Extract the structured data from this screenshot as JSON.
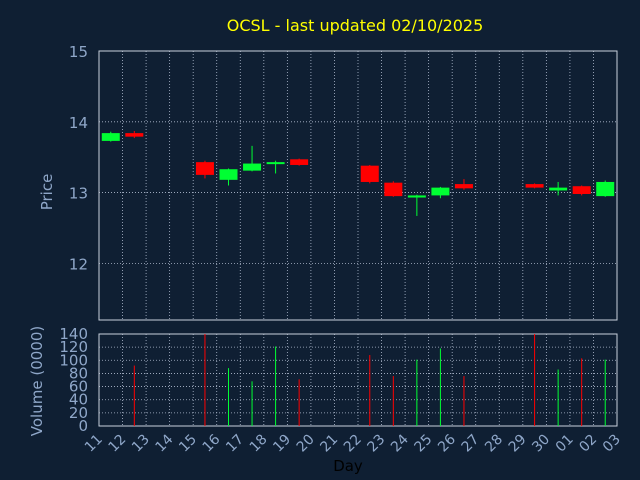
{
  "chart_data": {
    "type": "candlestick",
    "title": "OCSL - last updated 02/10/2025",
    "xlabel": "Day",
    "ylabel": "Price",
    "volume_label": "Volume (0000)",
    "x_ticks": [
      "11",
      "12",
      "13",
      "14",
      "15",
      "16",
      "17",
      "18",
      "19",
      "20",
      "21",
      "22",
      "23",
      "24",
      "25",
      "26",
      "27",
      "28",
      "29",
      "30",
      "01",
      "02",
      "03"
    ],
    "price_ylim": [
      11.2,
      15
    ],
    "price_ticks": [
      "12",
      "13",
      "14",
      "15"
    ],
    "volume_ylim": [
      0,
      140
    ],
    "volume_ticks": [
      "0",
      "20",
      "40",
      "60",
      "80",
      "100",
      "120",
      "140"
    ],
    "grid": true,
    "colors": {
      "up": "#00ff33",
      "down": "#ff0000",
      "background": "#0f1f33",
      "title": "#ffff00",
      "axis_text": "#8fa7c9",
      "grid": "#b0bcd0"
    },
    "candles": [
      {
        "day": "11",
        "open": 13.73,
        "close": 13.84,
        "high": 13.86,
        "low": 13.72,
        "volume": 0
      },
      {
        "day": "12",
        "open": 13.84,
        "close": 13.79,
        "high": 13.87,
        "low": 13.77,
        "volume": 92
      },
      {
        "day": "15",
        "open": 13.43,
        "close": 13.25,
        "high": 13.45,
        "low": 13.2,
        "volume": 140
      },
      {
        "day": "16",
        "open": 13.18,
        "close": 13.33,
        "high": 13.34,
        "low": 13.1,
        "volume": 88
      },
      {
        "day": "17",
        "open": 13.31,
        "close": 13.41,
        "high": 13.66,
        "low": 13.3,
        "volume": 68
      },
      {
        "day": "18",
        "open": 13.41,
        "close": 13.43,
        "high": 13.45,
        "low": 13.27,
        "volume": 121
      },
      {
        "day": "19",
        "open": 13.47,
        "close": 13.39,
        "high": 13.48,
        "low": 13.38,
        "volume": 71
      },
      {
        "day": "22",
        "open": 13.38,
        "close": 13.15,
        "high": 13.39,
        "low": 13.13,
        "volume": 108
      },
      {
        "day": "23",
        "open": 13.14,
        "close": 12.95,
        "high": 13.16,
        "low": 12.94,
        "volume": 76
      },
      {
        "day": "24",
        "open": 12.93,
        "close": 12.96,
        "high": 12.97,
        "low": 12.67,
        "volume": 101
      },
      {
        "day": "25",
        "open": 12.96,
        "close": 13.07,
        "high": 13.08,
        "low": 12.92,
        "volume": 118
      },
      {
        "day": "26",
        "open": 13.12,
        "close": 13.06,
        "high": 13.19,
        "low": 13.04,
        "volume": 76
      },
      {
        "day": "29",
        "open": 13.12,
        "close": 13.07,
        "high": 13.13,
        "low": 13.06,
        "volume": 140
      },
      {
        "day": "30",
        "open": 13.03,
        "close": 13.07,
        "high": 13.15,
        "low": 12.96,
        "volume": 86
      },
      {
        "day": "01",
        "open": 13.09,
        "close": 12.98,
        "high": 13.1,
        "low": 12.96,
        "volume": 103
      },
      {
        "day": "02",
        "open": 12.95,
        "close": 13.15,
        "high": 13.17,
        "low": 12.94,
        "volume": 101
      }
    ]
  }
}
